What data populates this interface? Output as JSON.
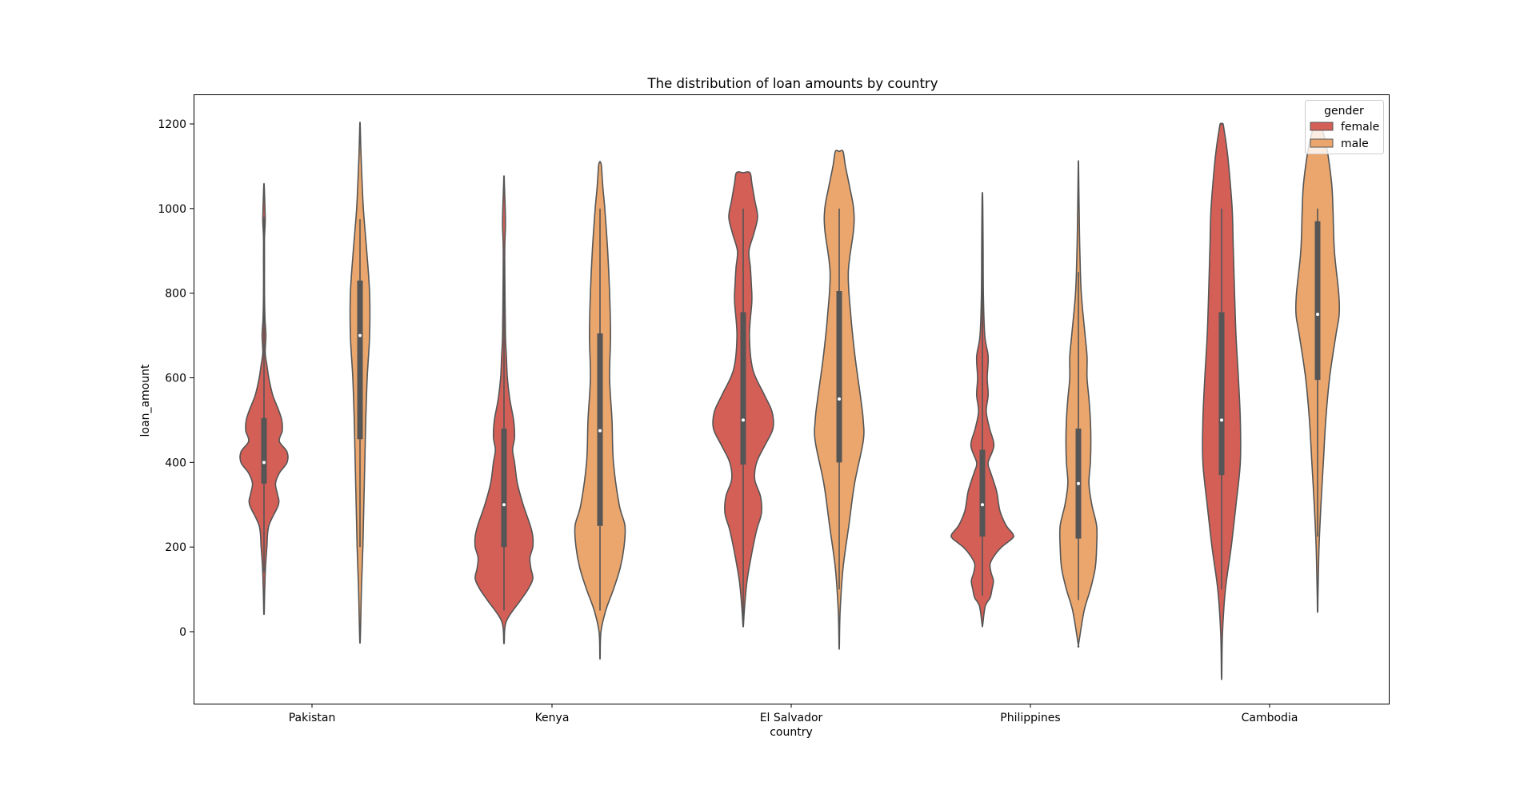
{
  "chart_data": {
    "type": "violin",
    "title": "The distribution of loan amounts by country",
    "xlabel": "country",
    "ylabel": "loan_amount",
    "categories": [
      "Pakistan",
      "Kenya",
      "El Salvador",
      "Philippines",
      "Cambodia"
    ],
    "ylim": [
      -170,
      1270
    ],
    "yticks": [
      0,
      200,
      400,
      600,
      800,
      1000,
      1200
    ],
    "grid": false,
    "legend": {
      "title": "gender",
      "placement": "top-right",
      "entries": [
        "female",
        "male"
      ]
    },
    "colors": {
      "female": "#d45f57",
      "male": "#eaa66d",
      "outline": "#555555"
    },
    "series": [
      {
        "name": "female",
        "violins": [
          {
            "category": "Pakistan",
            "ymin": 45,
            "ymax": 1055,
            "whisker": [
              140,
              980
            ],
            "q1": 350,
            "median": 400,
            "q3": 505,
            "profile": [
              [
                45,
                0.005
              ],
              [
                100,
                0.015
              ],
              [
                150,
                0.03
              ],
              [
                200,
                0.06
              ],
              [
                250,
                0.1
              ],
              [
                300,
                0.3
              ],
              [
                325,
                0.28
              ],
              [
                350,
                0.24
              ],
              [
                375,
                0.32
              ],
              [
                400,
                0.48
              ],
              [
                425,
                0.48
              ],
              [
                450,
                0.32
              ],
              [
                475,
                0.38
              ],
              [
                500,
                0.37
              ],
              [
                525,
                0.3
              ],
              [
                560,
                0.18
              ],
              [
                600,
                0.1
              ],
              [
                630,
                0.06
              ],
              [
                660,
                0.025
              ],
              [
                700,
                0.04
              ],
              [
                740,
                0.02
              ],
              [
                800,
                0.01
              ],
              [
                880,
                0.01
              ],
              [
                930,
                0.01
              ],
              [
                970,
                0.025
              ],
              [
                1000,
                0.02
              ],
              [
                1055,
                0.005
              ]
            ]
          },
          {
            "category": "Kenya",
            "ymin": -25,
            "ymax": 1075,
            "whisker": [
              50,
              875
            ],
            "q1": 200,
            "median": 300,
            "q3": 480,
            "profile": [
              [
                -25,
                0.005
              ],
              [
                25,
                0.05
              ],
              [
                75,
                0.35
              ],
              [
                100,
                0.5
              ],
              [
                125,
                0.6
              ],
              [
                150,
                0.56
              ],
              [
                175,
                0.54
              ],
              [
                200,
                0.6
              ],
              [
                225,
                0.6
              ],
              [
                250,
                0.55
              ],
              [
                300,
                0.4
              ],
              [
                350,
                0.28
              ],
              [
                400,
                0.22
              ],
              [
                430,
                0.18
              ],
              [
                460,
                0.22
              ],
              [
                500,
                0.2
              ],
              [
                550,
                0.12
              ],
              [
                600,
                0.07
              ],
              [
                650,
                0.05
              ],
              [
                700,
                0.03
              ],
              [
                800,
                0.02
              ],
              [
                900,
                0.015
              ],
              [
                960,
                0.03
              ],
              [
                1000,
                0.025
              ],
              [
                1050,
                0.01
              ],
              [
                1075,
                0.003
              ]
            ]
          },
          {
            "category": "El Salvador",
            "ymin": 15,
            "ymax": 1085,
            "whisker": [
              15,
              1000
            ],
            "q1": 395,
            "median": 500,
            "q3": 755,
            "profile": [
              [
                15,
                0.005
              ],
              [
                60,
                0.03
              ],
              [
                120,
                0.08
              ],
              [
                180,
                0.17
              ],
              [
                240,
                0.28
              ],
              [
                280,
                0.38
              ],
              [
                320,
                0.36
              ],
              [
                360,
                0.24
              ],
              [
                400,
                0.28
              ],
              [
                440,
                0.45
              ],
              [
                480,
                0.62
              ],
              [
                520,
                0.6
              ],
              [
                560,
                0.44
              ],
              [
                620,
                0.2
              ],
              [
                700,
                0.13
              ],
              [
                780,
                0.18
              ],
              [
                820,
                0.17
              ],
              [
                860,
                0.15
              ],
              [
                900,
                0.12
              ],
              [
                940,
                0.22
              ],
              [
                980,
                0.3
              ],
              [
                1020,
                0.24
              ],
              [
                1060,
                0.18
              ],
              [
                1085,
                0.14
              ]
            ]
          },
          {
            "category": "Philippines",
            "ymin": 15,
            "ymax": 1035,
            "whisker": [
              85,
              1000
            ],
            "q1": 225,
            "median": 300,
            "q3": 430,
            "profile": [
              [
                15,
                0.005
              ],
              [
                60,
                0.06
              ],
              [
                80,
                0.16
              ],
              [
                100,
                0.2
              ],
              [
                120,
                0.23
              ],
              [
                140,
                0.18
              ],
              [
                160,
                0.16
              ],
              [
                180,
                0.25
              ],
              [
                200,
                0.4
              ],
              [
                220,
                0.62
              ],
              [
                230,
                0.64
              ],
              [
                250,
                0.5
              ],
              [
                280,
                0.38
              ],
              [
                300,
                0.34
              ],
              [
                330,
                0.3
              ],
              [
                360,
                0.22
              ],
              [
                380,
                0.16
              ],
              [
                400,
                0.12
              ],
              [
                440,
                0.24
              ],
              [
                480,
                0.15
              ],
              [
                520,
                0.08
              ],
              [
                560,
                0.12
              ],
              [
                600,
                0.1
              ],
              [
                650,
                0.12
              ],
              [
                700,
                0.05
              ],
              [
                800,
                0.02
              ],
              [
                900,
                0.015
              ],
              [
                1000,
                0.008
              ],
              [
                1035,
                0.003
              ]
            ]
          },
          {
            "category": "Cambodia",
            "ymin": -105,
            "ymax": 1200,
            "whisker": [
              100,
              1000
            ],
            "q1": 370,
            "median": 500,
            "q3": 755,
            "profile": [
              [
                -105,
                0.003
              ],
              [
                0,
                0.02
              ],
              [
                100,
                0.08
              ],
              [
                200,
                0.2
              ],
              [
                300,
                0.3
              ],
              [
                400,
                0.39
              ],
              [
                500,
                0.39
              ],
              [
                600,
                0.35
              ],
              [
                700,
                0.3
              ],
              [
                800,
                0.27
              ],
              [
                880,
                0.25
              ],
              [
                920,
                0.24
              ],
              [
                1000,
                0.22
              ],
              [
                1100,
                0.15
              ],
              [
                1150,
                0.1
              ],
              [
                1180,
                0.06
              ],
              [
                1200,
                0.03
              ]
            ]
          }
        ]
      },
      {
        "name": "male",
        "violins": [
          {
            "category": "Pakistan",
            "ymin": -25,
            "ymax": 1200,
            "whisker": [
              200,
              975
            ],
            "q1": 455,
            "median": 700,
            "q3": 830,
            "profile": [
              [
                -25,
                0.003
              ],
              [
                0,
                0.01
              ],
              [
                100,
                0.03
              ],
              [
                200,
                0.06
              ],
              [
                300,
                0.08
              ],
              [
                400,
                0.1
              ],
              [
                500,
                0.12
              ],
              [
                600,
                0.15
              ],
              [
                700,
                0.2
              ],
              [
                800,
                0.2
              ],
              [
                900,
                0.14
              ],
              [
                1000,
                0.07
              ],
              [
                1100,
                0.03
              ],
              [
                1150,
                0.015
              ],
              [
                1200,
                0.004
              ]
            ]
          },
          {
            "category": "Kenya",
            "ymin": -60,
            "ymax": 1110,
            "whisker": [
              50,
              1000
            ],
            "q1": 250,
            "median": 475,
            "q3": 705,
            "profile": [
              [
                -60,
                0.003
              ],
              [
                0,
                0.02
              ],
              [
                50,
                0.12
              ],
              [
                100,
                0.28
              ],
              [
                150,
                0.42
              ],
              [
                200,
                0.5
              ],
              [
                250,
                0.52
              ],
              [
                300,
                0.4
              ],
              [
                400,
                0.28
              ],
              [
                500,
                0.25
              ],
              [
                600,
                0.2
              ],
              [
                700,
                0.22
              ],
              [
                800,
                0.2
              ],
              [
                900,
                0.16
              ],
              [
                1000,
                0.1
              ],
              [
                1050,
                0.06
              ],
              [
                1100,
                0.03
              ],
              [
                1110,
                0.01
              ]
            ]
          },
          {
            "category": "El Salvador",
            "ymin": -35,
            "ymax": 1135,
            "whisker": [
              100,
              1000
            ],
            "q1": 400,
            "median": 550,
            "q3": 805,
            "profile": [
              [
                -35,
                0.003
              ],
              [
                50,
                0.02
              ],
              [
                150,
                0.08
              ],
              [
                250,
                0.2
              ],
              [
                350,
                0.32
              ],
              [
                450,
                0.5
              ],
              [
                500,
                0.5
              ],
              [
                550,
                0.45
              ],
              [
                650,
                0.33
              ],
              [
                750,
                0.24
              ],
              [
                850,
                0.19
              ],
              [
                950,
                0.3
              ],
              [
                1000,
                0.3
              ],
              [
                1050,
                0.22
              ],
              [
                1100,
                0.13
              ],
              [
                1135,
                0.08
              ]
            ]
          },
          {
            "category": "Philippines",
            "ymin": -30,
            "ymax": 1105,
            "whisker": [
              75,
              850
            ],
            "q1": 220,
            "median": 350,
            "q3": 480,
            "profile": [
              [
                -30,
                0.003
              ],
              [
                50,
                0.12
              ],
              [
                100,
                0.25
              ],
              [
                150,
                0.35
              ],
              [
                200,
                0.38
              ],
              [
                250,
                0.38
              ],
              [
                300,
                0.28
              ],
              [
                350,
                0.22
              ],
              [
                400,
                0.25
              ],
              [
                450,
                0.26
              ],
              [
                500,
                0.25
              ],
              [
                550,
                0.22
              ],
              [
                600,
                0.18
              ],
              [
                650,
                0.18
              ],
              [
                700,
                0.14
              ],
              [
                800,
                0.06
              ],
              [
                900,
                0.03
              ],
              [
                1000,
                0.015
              ],
              [
                1105,
                0.003
              ]
            ]
          },
          {
            "category": "Cambodia",
            "ymin": 50,
            "ymax": 1200,
            "whisker": [
              225,
              1000
            ],
            "q1": 595,
            "median": 750,
            "q3": 970,
            "profile": [
              [
                50,
                0.003
              ],
              [
                100,
                0.01
              ],
              [
                200,
                0.03
              ],
              [
                300,
                0.07
              ],
              [
                400,
                0.12
              ],
              [
                500,
                0.17
              ],
              [
                600,
                0.25
              ],
              [
                700,
                0.38
              ],
              [
                750,
                0.45
              ],
              [
                800,
                0.44
              ],
              [
                900,
                0.35
              ],
              [
                1000,
                0.32
              ],
              [
                1050,
                0.3
              ],
              [
                1100,
                0.25
              ],
              [
                1150,
                0.18
              ],
              [
                1200,
                0.06
              ]
            ]
          }
        ]
      }
    ]
  }
}
